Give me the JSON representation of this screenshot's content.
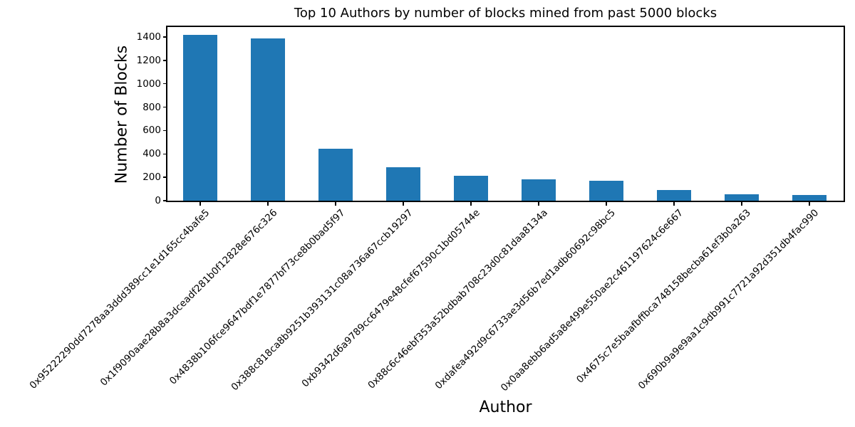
{
  "figure": {
    "background_color": "#ffffff",
    "text_color": "#000000"
  },
  "chart_data": {
    "type": "bar",
    "title": "Top 10 Authors by number of blocks mined from past 5000 blocks",
    "xlabel": "Author",
    "ylabel": "Number of Blocks",
    "categories": [
      "0x95222290dd7278aa3ddd389cc1e1d165cc4bafe5",
      "0x1f9090aae28b8a3dceadf281b0f12828e676c326",
      "0x4838b106fce9647bdf1e7877bf73ce8b0bad5f97",
      "0x388c818ca8b9251b393131c08a736a67ccb19297",
      "0xb9342d6a9789cc6479e48cfef67590c1bd05744e",
      "0x88c6c46ebf353a52bdbab708c23d0c81daa8134a",
      "0xdafea492d9c6733ae3d56b7ed1adb60692c98bc5",
      "0x0aa8ebb6ad5a8e499e550ae2c461197624c6e667",
      "0x4675c7e5baafbffbca748158becba61ef3b0a263",
      "0x690b9a9e9aa1c9db991c7721a92d351db4fac990"
    ],
    "values": [
      1418,
      1390,
      447,
      288,
      216,
      184,
      168,
      92,
      58,
      48
    ],
    "yticks": [
      0,
      200,
      400,
      600,
      800,
      1000,
      1200,
      1400
    ],
    "ylim": [
      0,
      1485
    ],
    "bar_color": "#1f77b4",
    "axis_color": "#000000",
    "grid": false,
    "legend": "none",
    "x_tick_rotation_deg": 45
  }
}
